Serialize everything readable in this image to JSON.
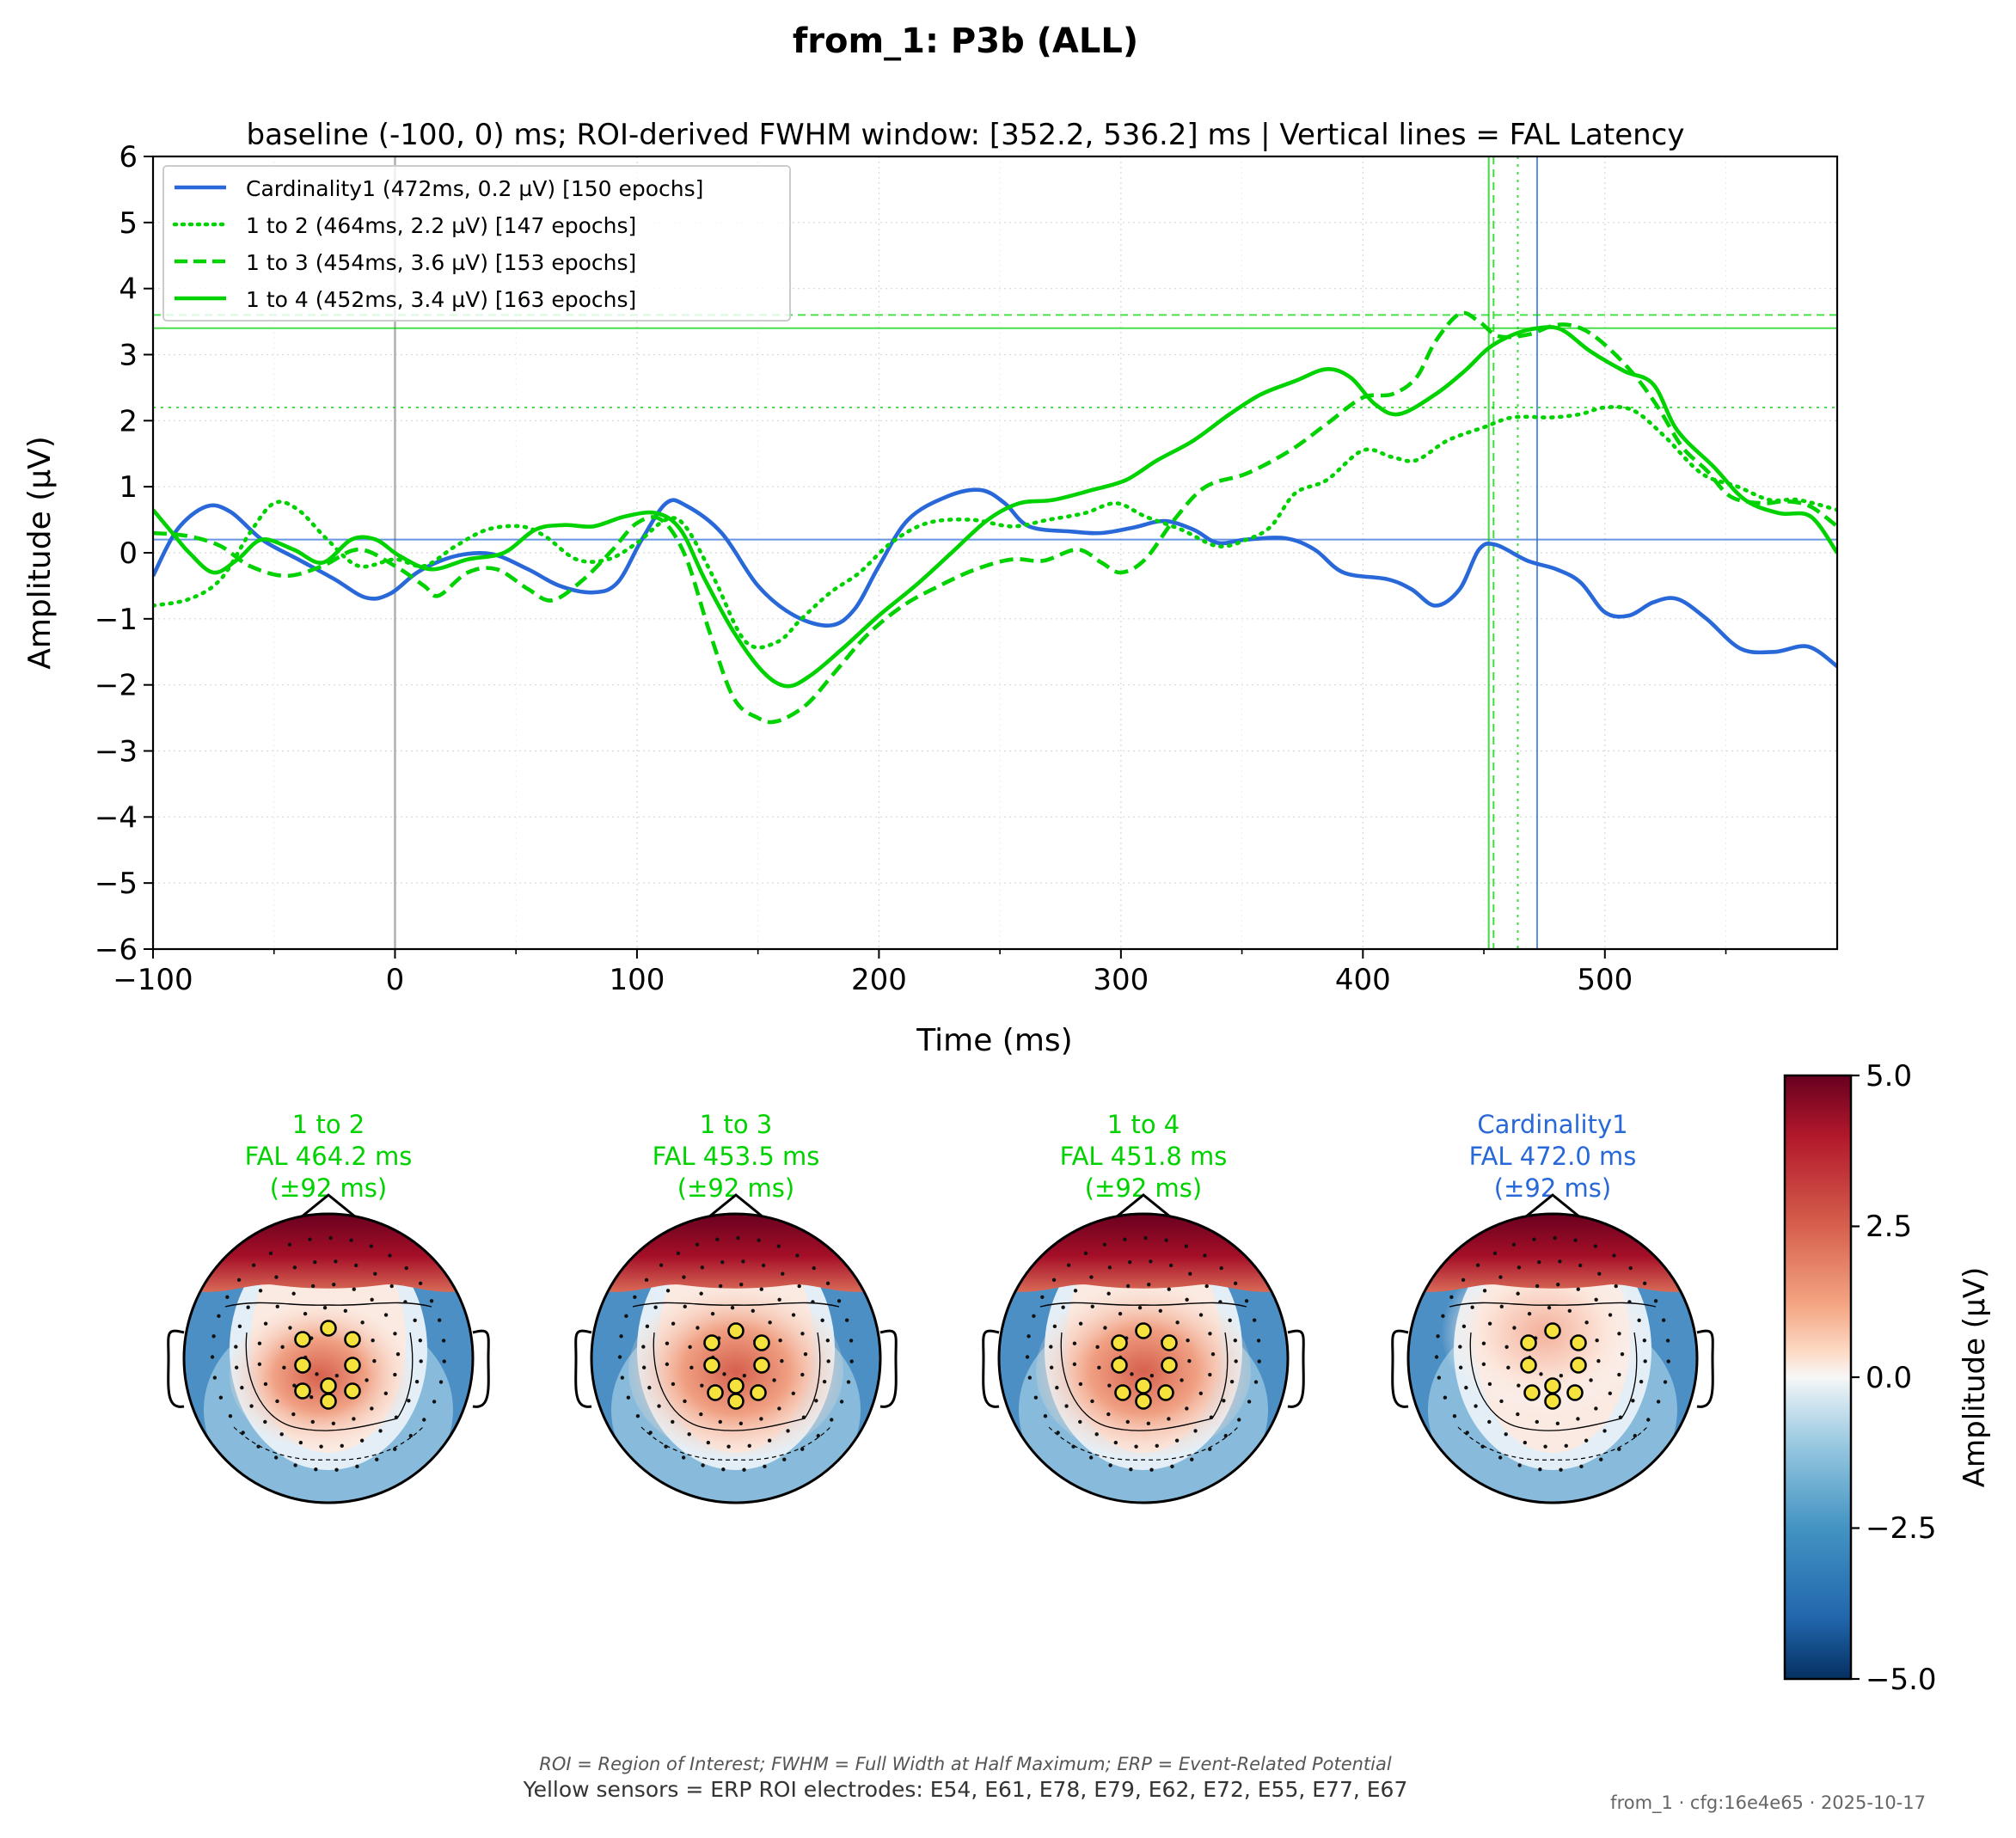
{
  "figure": {
    "suptitle": "from_1: P3b (ALL)",
    "subtitle": "baseline (-100, 0) ms; ROI-derived FWHM window: [352.2, 536.2] ms | Vertical lines = FAL Latency",
    "footer_line1": "ROI = Region of Interest; FWHM = Full Width at Half Maximum; ERP = Event-Related Potential",
    "footer_line2": "Yellow sensors = ERP ROI electrodes: E54, E61, E78, E79, E62, E72, E55, E77, E67",
    "stamp": "from_1 · cfg:16e4e65 · 2025-10-17"
  },
  "chart_data": [
    {
      "type": "line",
      "xlabel": "Time (ms)",
      "ylabel": "Amplitude (µV)",
      "xlim": [
        -100,
        596
      ],
      "ylim": [
        -6,
        6
      ],
      "xticks": [
        -100,
        0,
        100,
        200,
        300,
        400,
        500
      ],
      "xtick_labels": [
        "−100",
        "0",
        "100",
        "200",
        "300",
        "400",
        "500"
      ],
      "yticks": [
        -6,
        -5,
        -4,
        -3,
        -2,
        -1,
        0,
        1,
        2,
        3,
        4,
        5,
        6
      ],
      "ytick_labels": [
        "−6",
        "−5",
        "−4",
        "−3",
        "−2",
        "−1",
        "0",
        "1",
        "2",
        "3",
        "4",
        "5",
        "6"
      ],
      "grid": true,
      "legend_position": "upper-left",
      "stimulus_onset_line": 0,
      "series": [
        {
          "name": "Cardinality1 (472ms, 0.2 µV) [150 epochs]",
          "color": "#2868d8",
          "dash": "solid",
          "fal_latency": 472,
          "mean_amp": 0.2,
          "points": [
            [
              -100,
              -0.35
            ],
            [
              -90,
              0.35
            ],
            [
              -78,
              0.7
            ],
            [
              -68,
              0.62
            ],
            [
              -55,
              0.2
            ],
            [
              -40,
              -0.1
            ],
            [
              -25,
              -0.4
            ],
            [
              -12,
              -0.68
            ],
            [
              -2,
              -0.62
            ],
            [
              10,
              -0.28
            ],
            [
              25,
              -0.05
            ],
            [
              40,
              -0.02
            ],
            [
              55,
              -0.25
            ],
            [
              68,
              -0.5
            ],
            [
              82,
              -0.6
            ],
            [
              92,
              -0.45
            ],
            [
              102,
              0.2
            ],
            [
              112,
              0.75
            ],
            [
              120,
              0.72
            ],
            [
              135,
              0.3
            ],
            [
              150,
              -0.5
            ],
            [
              165,
              -0.95
            ],
            [
              180,
              -1.1
            ],
            [
              190,
              -0.85
            ],
            [
              200,
              -0.2
            ],
            [
              212,
              0.5
            ],
            [
              228,
              0.85
            ],
            [
              242,
              0.95
            ],
            [
              252,
              0.75
            ],
            [
              262,
              0.4
            ],
            [
              280,
              0.32
            ],
            [
              292,
              0.3
            ],
            [
              305,
              0.38
            ],
            [
              318,
              0.48
            ],
            [
              330,
              0.35
            ],
            [
              340,
              0.15
            ],
            [
              352,
              0.2
            ],
            [
              368,
              0.22
            ],
            [
              380,
              0.05
            ],
            [
              392,
              -0.3
            ],
            [
              410,
              -0.4
            ],
            [
              420,
              -0.55
            ],
            [
              430,
              -0.8
            ],
            [
              440,
              -0.55
            ],
            [
              448,
              0.05
            ],
            [
              455,
              0.12
            ],
            [
              468,
              -0.12
            ],
            [
              480,
              -0.25
            ],
            [
              490,
              -0.45
            ],
            [
              500,
              -0.9
            ],
            [
              510,
              -0.95
            ],
            [
              520,
              -0.75
            ],
            [
              530,
              -0.7
            ],
            [
              542,
              -1.0
            ],
            [
              556,
              -1.45
            ],
            [
              570,
              -1.5
            ],
            [
              584,
              -1.42
            ],
            [
              596,
              -1.72
            ]
          ]
        },
        {
          "name": "1 to 2 (464ms, 2.2 µV) [147 epochs]",
          "color": "#00d200",
          "dash": "dotted",
          "fal_latency": 464,
          "mean_amp": 2.2,
          "points": [
            [
              -100,
              -0.8
            ],
            [
              -85,
              -0.7
            ],
            [
              -72,
              -0.4
            ],
            [
              -60,
              0.3
            ],
            [
              -50,
              0.75
            ],
            [
              -40,
              0.65
            ],
            [
              -28,
              0.2
            ],
            [
              -15,
              -0.2
            ],
            [
              0,
              -0.1
            ],
            [
              12,
              -0.2
            ],
            [
              25,
              0.1
            ],
            [
              38,
              0.35
            ],
            [
              52,
              0.4
            ],
            [
              62,
              0.25
            ],
            [
              75,
              -0.1
            ],
            [
              88,
              -0.1
            ],
            [
              100,
              0.15
            ],
            [
              112,
              0.5
            ],
            [
              120,
              0.4
            ],
            [
              132,
              -0.4
            ],
            [
              145,
              -1.35
            ],
            [
              158,
              -1.35
            ],
            [
              168,
              -1.0
            ],
            [
              180,
              -0.6
            ],
            [
              192,
              -0.3
            ],
            [
              205,
              0.15
            ],
            [
              220,
              0.45
            ],
            [
              238,
              0.5
            ],
            [
              255,
              0.4
            ],
            [
              270,
              0.5
            ],
            [
              285,
              0.6
            ],
            [
              298,
              0.75
            ],
            [
              310,
              0.55
            ],
            [
              325,
              0.35
            ],
            [
              340,
              0.1
            ],
            [
              352,
              0.2
            ],
            [
              362,
              0.4
            ],
            [
              372,
              0.9
            ],
            [
              385,
              1.1
            ],
            [
              400,
              1.55
            ],
            [
              412,
              1.45
            ],
            [
              422,
              1.4
            ],
            [
              435,
              1.7
            ],
            [
              450,
              1.9
            ],
            [
              462,
              2.05
            ],
            [
              478,
              2.05
            ],
            [
              490,
              2.1
            ],
            [
              500,
              2.2
            ],
            [
              512,
              2.15
            ],
            [
              525,
              1.75
            ],
            [
              540,
              1.2
            ],
            [
              555,
              1.0
            ],
            [
              568,
              0.8
            ],
            [
              580,
              0.8
            ],
            [
              596,
              0.65
            ]
          ]
        },
        {
          "name": "1 to 3 (454ms, 3.6 µV) [153 epochs]",
          "color": "#00d200",
          "dash": "dashed",
          "fal_latency": 454,
          "mean_amp": 3.6,
          "points": [
            [
              -100,
              0.3
            ],
            [
              -85,
              0.25
            ],
            [
              -72,
              0.1
            ],
            [
              -60,
              -0.2
            ],
            [
              -45,
              -0.35
            ],
            [
              -30,
              -0.2
            ],
            [
              -15,
              0.05
            ],
            [
              0,
              -0.2
            ],
            [
              12,
              -0.5
            ],
            [
              18,
              -0.65
            ],
            [
              30,
              -0.3
            ],
            [
              42,
              -0.25
            ],
            [
              55,
              -0.55
            ],
            [
              65,
              -0.72
            ],
            [
              78,
              -0.4
            ],
            [
              90,
              0.05
            ],
            [
              100,
              0.45
            ],
            [
              110,
              0.5
            ],
            [
              120,
              -0.05
            ],
            [
              130,
              -1.2
            ],
            [
              140,
              -2.2
            ],
            [
              150,
              -2.5
            ],
            [
              158,
              -2.55
            ],
            [
              170,
              -2.3
            ],
            [
              182,
              -1.8
            ],
            [
              195,
              -1.25
            ],
            [
              210,
              -0.8
            ],
            [
              225,
              -0.5
            ],
            [
              240,
              -0.25
            ],
            [
              255,
              -0.1
            ],
            [
              268,
              -0.12
            ],
            [
              282,
              0.05
            ],
            [
              292,
              -0.15
            ],
            [
              300,
              -0.3
            ],
            [
              310,
              -0.1
            ],
            [
              322,
              0.5
            ],
            [
              335,
              1.0
            ],
            [
              352,
              1.2
            ],
            [
              370,
              1.55
            ],
            [
              385,
              1.95
            ],
            [
              400,
              2.35
            ],
            [
              412,
              2.4
            ],
            [
              422,
              2.65
            ],
            [
              430,
              3.2
            ],
            [
              440,
              3.62
            ],
            [
              448,
              3.5
            ],
            [
              456,
              3.28
            ],
            [
              468,
              3.3
            ],
            [
              480,
              3.45
            ],
            [
              490,
              3.4
            ],
            [
              500,
              3.15
            ],
            [
              512,
              2.7
            ],
            [
              522,
              2.2
            ],
            [
              532,
              1.6
            ],
            [
              542,
              1.25
            ],
            [
              552,
              0.85
            ],
            [
              565,
              0.75
            ],
            [
              575,
              0.78
            ],
            [
              585,
              0.7
            ],
            [
              596,
              0.4
            ]
          ]
        },
        {
          "name": "1 to 4 (452ms, 3.4 µV) [163 epochs]",
          "color": "#00d200",
          "dash": "solid",
          "fal_latency": 452,
          "mean_amp": 3.4,
          "points": [
            [
              -100,
              0.65
            ],
            [
              -92,
              0.3
            ],
            [
              -85,
              0.0
            ],
            [
              -75,
              -0.3
            ],
            [
              -65,
              -0.1
            ],
            [
              -55,
              0.2
            ],
            [
              -42,
              0.05
            ],
            [
              -30,
              -0.15
            ],
            [
              -18,
              0.2
            ],
            [
              -8,
              0.2
            ],
            [
              2,
              -0.05
            ],
            [
              15,
              -0.25
            ],
            [
              30,
              -0.1
            ],
            [
              45,
              0.0
            ],
            [
              58,
              0.35
            ],
            [
              70,
              0.42
            ],
            [
              82,
              0.4
            ],
            [
              95,
              0.55
            ],
            [
              108,
              0.6
            ],
            [
              118,
              0.35
            ],
            [
              128,
              -0.4
            ],
            [
              140,
              -1.2
            ],
            [
              152,
              -1.8
            ],
            [
              162,
              -2.02
            ],
            [
              172,
              -1.85
            ],
            [
              185,
              -1.45
            ],
            [
              200,
              -0.95
            ],
            [
              215,
              -0.5
            ],
            [
              230,
              0.0
            ],
            [
              245,
              0.5
            ],
            [
              258,
              0.75
            ],
            [
              272,
              0.8
            ],
            [
              288,
              0.95
            ],
            [
              302,
              1.1
            ],
            [
              315,
              1.4
            ],
            [
              330,
              1.7
            ],
            [
              345,
              2.1
            ],
            [
              358,
              2.4
            ],
            [
              372,
              2.6
            ],
            [
              385,
              2.78
            ],
            [
              395,
              2.65
            ],
            [
              405,
              2.25
            ],
            [
              415,
              2.1
            ],
            [
              430,
              2.4
            ],
            [
              442,
              2.75
            ],
            [
              452,
              3.1
            ],
            [
              462,
              3.3
            ],
            [
              472,
              3.4
            ],
            [
              482,
              3.38
            ],
            [
              494,
              3.05
            ],
            [
              508,
              2.75
            ],
            [
              520,
              2.55
            ],
            [
              530,
              1.85
            ],
            [
              545,
              1.3
            ],
            [
              558,
              0.8
            ],
            [
              572,
              0.6
            ],
            [
              585,
              0.55
            ],
            [
              596,
              0.0
            ]
          ]
        }
      ]
    },
    {
      "type": "heatmap",
      "kind": "scalp-topomaps",
      "colorbar": {
        "label": "Amplitude (µV)",
        "range": [
          -5.0,
          5.0
        ],
        "ticks": [
          "5.0",
          "2.5",
          "0.0",
          "−2.5",
          "−5.0"
        ],
        "colormap": "RdBu_r"
      },
      "maps": [
        {
          "line1": "1 to 2",
          "line2": "FAL 464.2 ms",
          "line3": "(±92 ms)",
          "color": "#00d200"
        },
        {
          "line1": "1 to 3",
          "line2": "FAL 453.5 ms",
          "line3": "(±92 ms)",
          "color": "#00d200"
        },
        {
          "line1": "1 to 4",
          "line2": "FAL 451.8 ms",
          "line3": "(±92 ms)",
          "color": "#00d200"
        },
        {
          "line1": "Cardinality1",
          "line2": "FAL 472.0 ms",
          "line3": "(±92 ms)",
          "color": "#2868d8"
        }
      ]
    }
  ]
}
